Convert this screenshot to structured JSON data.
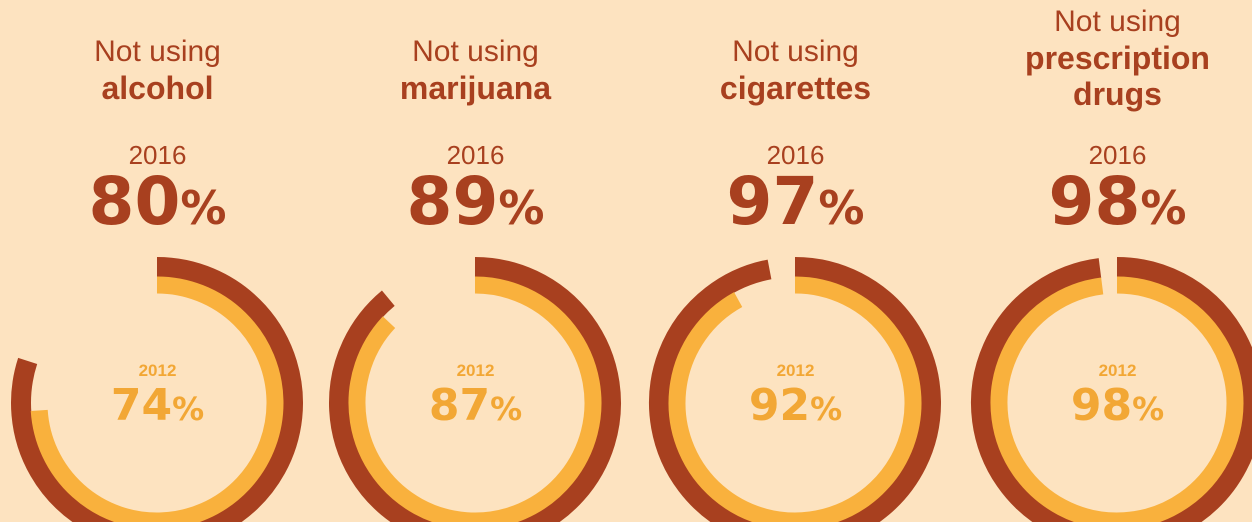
{
  "chart_data": {
    "type": "pie",
    "panels": [
      {
        "prefix": "Not using",
        "substance": "alcohol",
        "year_2016": "2016",
        "value_2016": 80,
        "year_2012": "2012",
        "value_2012": 74
      },
      {
        "prefix": "Not using",
        "substance": "marijuana",
        "year_2016": "2016",
        "value_2016": 89,
        "year_2012": "2012",
        "value_2012": 87
      },
      {
        "prefix": "Not using",
        "substance": "cigarettes",
        "year_2016": "2016",
        "value_2016": 97,
        "year_2012": "2012",
        "value_2012": 92
      },
      {
        "prefix": "Not using",
        "substance": "prescription drugs",
        "year_2016": "2016",
        "value_2016": 98,
        "year_2012": "2012",
        "value_2012": 98
      }
    ],
    "percent_sign": "%"
  },
  "colors": {
    "background": "#fde3c0",
    "ring_2016": "#a8401f",
    "ring_2012": "#f9b13d",
    "text_2016": "#a8401f",
    "text_2012": "#f2a735"
  }
}
